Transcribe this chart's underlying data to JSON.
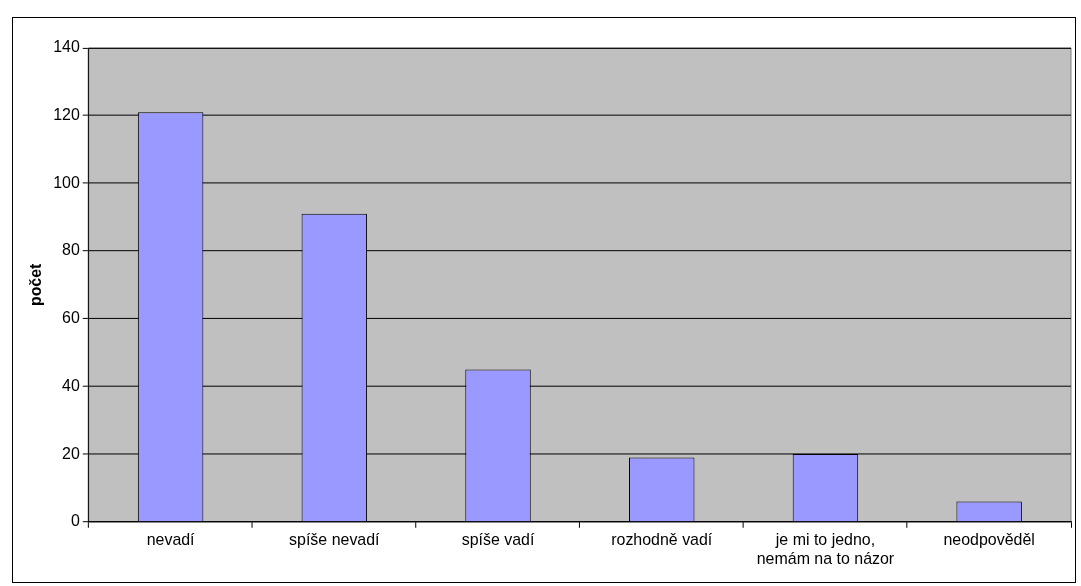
{
  "chart_data": {
    "type": "bar",
    "ylabel": "počet",
    "categories": [
      "nevadí",
      "spíše nevadí",
      "spíše vadí",
      "rozhodně vadí",
      "je mi to jedno, nemám na to názor",
      "neodpověděl"
    ],
    "values": [
      121,
      91,
      45,
      19,
      20,
      6
    ],
    "color": "#9999ff",
    "ylim": [
      0,
      140
    ],
    "yticks": [
      0,
      20,
      40,
      60,
      80,
      100,
      120,
      140
    ],
    "grid": "y",
    "legend": false
  }
}
